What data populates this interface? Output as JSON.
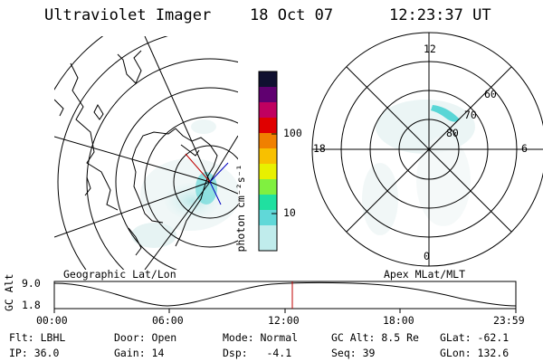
{
  "header": {
    "instrument": "Ultraviolet Imager",
    "date": "18 Oct 07",
    "time": "12:23:37 UT"
  },
  "geo_panel": {
    "label": "Geographic Lat/Lon"
  },
  "apex_panel": {
    "label": "Apex MLat/MLT",
    "mlt_labels": {
      "top": "12",
      "right": "6",
      "bottom": "0",
      "left": "18"
    },
    "lat_labels": [
      "60",
      "70",
      "80"
    ]
  },
  "colorbar": {
    "unit_label": "photon cm⁻²s⁻¹",
    "tick_labels": [
      "100",
      "10"
    ],
    "colors": [
      "#101030",
      "#600070",
      "#c00060",
      "#e00000",
      "#f08000",
      "#f8c000",
      "#e8f000",
      "#80f040",
      "#20e0a0",
      "#60d8d8",
      "#c0ecec"
    ]
  },
  "altitude_plot": {
    "ylabel": "GC Alt",
    "y_ticks": [
      "9.0",
      "1.8"
    ],
    "x_ticks": [
      "00:00",
      "06:00",
      "12:00",
      "18:00",
      "23:59"
    ],
    "current_marker_hour": 12.39
  },
  "status": {
    "filter": "Flt: LBHL",
    "door": "Door: Open",
    "mode": "Mode: Normal",
    "gc_alt": "GC Alt: 8.5 Re",
    "glat": "GLat: -62.1",
    "ip": "IP: 36.0",
    "gain": "Gain: 14",
    "dsp": "Dsp:   -4.1",
    "seq": "Seq: 39",
    "glon": "GLon: 132.6"
  }
}
